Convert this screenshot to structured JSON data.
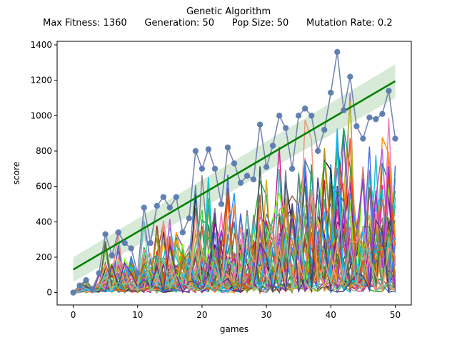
{
  "chart_data": {
    "type": "line",
    "title": "Genetic Algorithm",
    "subtitle": "Max Fitness: 1360      Generation: 50      Pop Size: 50      Mutation Rate: 0.2",
    "xlabel": "games",
    "ylabel": "score",
    "xlim": [
      -2.5,
      52.5
    ],
    "ylim": [
      -70,
      1420
    ],
    "x_ticks": [
      0,
      10,
      20,
      30,
      40,
      50
    ],
    "y_ticks": [
      0,
      200,
      400,
      600,
      800,
      1000,
      1200,
      1400
    ],
    "grid": false,
    "legend": "none",
    "max_points": {
      "x": [
        0,
        1,
        2,
        3,
        4,
        5,
        6,
        7,
        8,
        9,
        10,
        11,
        12,
        13,
        14,
        15,
        16,
        17,
        18,
        19,
        20,
        21,
        22,
        23,
        24,
        25,
        26,
        27,
        28,
        29,
        30,
        31,
        32,
        33,
        34,
        35,
        36,
        37,
        38,
        39,
        40,
        41,
        42,
        43,
        44,
        45,
        46,
        47,
        48,
        49,
        50
      ],
      "y": [
        0,
        40,
        70,
        20,
        110,
        330,
        210,
        340,
        280,
        250,
        110,
        480,
        280,
        490,
        540,
        480,
        540,
        340,
        420,
        800,
        700,
        810,
        700,
        500,
        820,
        730,
        620,
        660,
        640,
        950,
        710,
        830,
        1000,
        930,
        700,
        1000,
        1040,
        1000,
        800,
        920,
        1130,
        1360,
        1030,
        1220,
        940,
        870,
        990,
        980,
        1010,
        1140,
        870
      ]
    },
    "trend_line": {
      "x": [
        0,
        50
      ],
      "y": [
        130,
        1195
      ],
      "color": "#008000"
    },
    "confidence_band": {
      "x": [
        0,
        50
      ],
      "upper": [
        200,
        1290
      ],
      "lower": [
        60,
        1100
      ],
      "color": "#c9e3c9"
    },
    "marker_color": "#5b7bb0",
    "series_colors": [
      "#1f77b4",
      "#ff7f0e",
      "#2ca02c",
      "#d62728",
      "#9467bd",
      "#8c564b",
      "#e377c2",
      "#7f7f7f",
      "#bcbd22",
      "#17becf",
      "#1a1a1a",
      "#00a651",
      "#ff1493",
      "#4b0082",
      "#daa520",
      "#20b2aa",
      "#dc143c",
      "#6a5acd",
      "#32cd32",
      "#ff8c00",
      "#4169e1",
      "#b22222",
      "#228b22",
      "#c71585",
      "#708090",
      "#e6b422",
      "#00ced1",
      "#8b008b",
      "#a0522d",
      "#7cfc00",
      "#ff69b4",
      "#2f4f4f",
      "#4682b4",
      "#9acd32",
      "#f08080",
      "#6b8e23",
      "#ba55d3",
      "#3cb371",
      "#cd853f",
      "#1e90ff",
      "#ff4500",
      "#8fbc8f",
      "#9932cc",
      "#556b2f",
      "#f4a460",
      "#00bfff",
      "#b8860b",
      "#e9967a",
      "#483d8b",
      "#66cdaa"
    ]
  }
}
